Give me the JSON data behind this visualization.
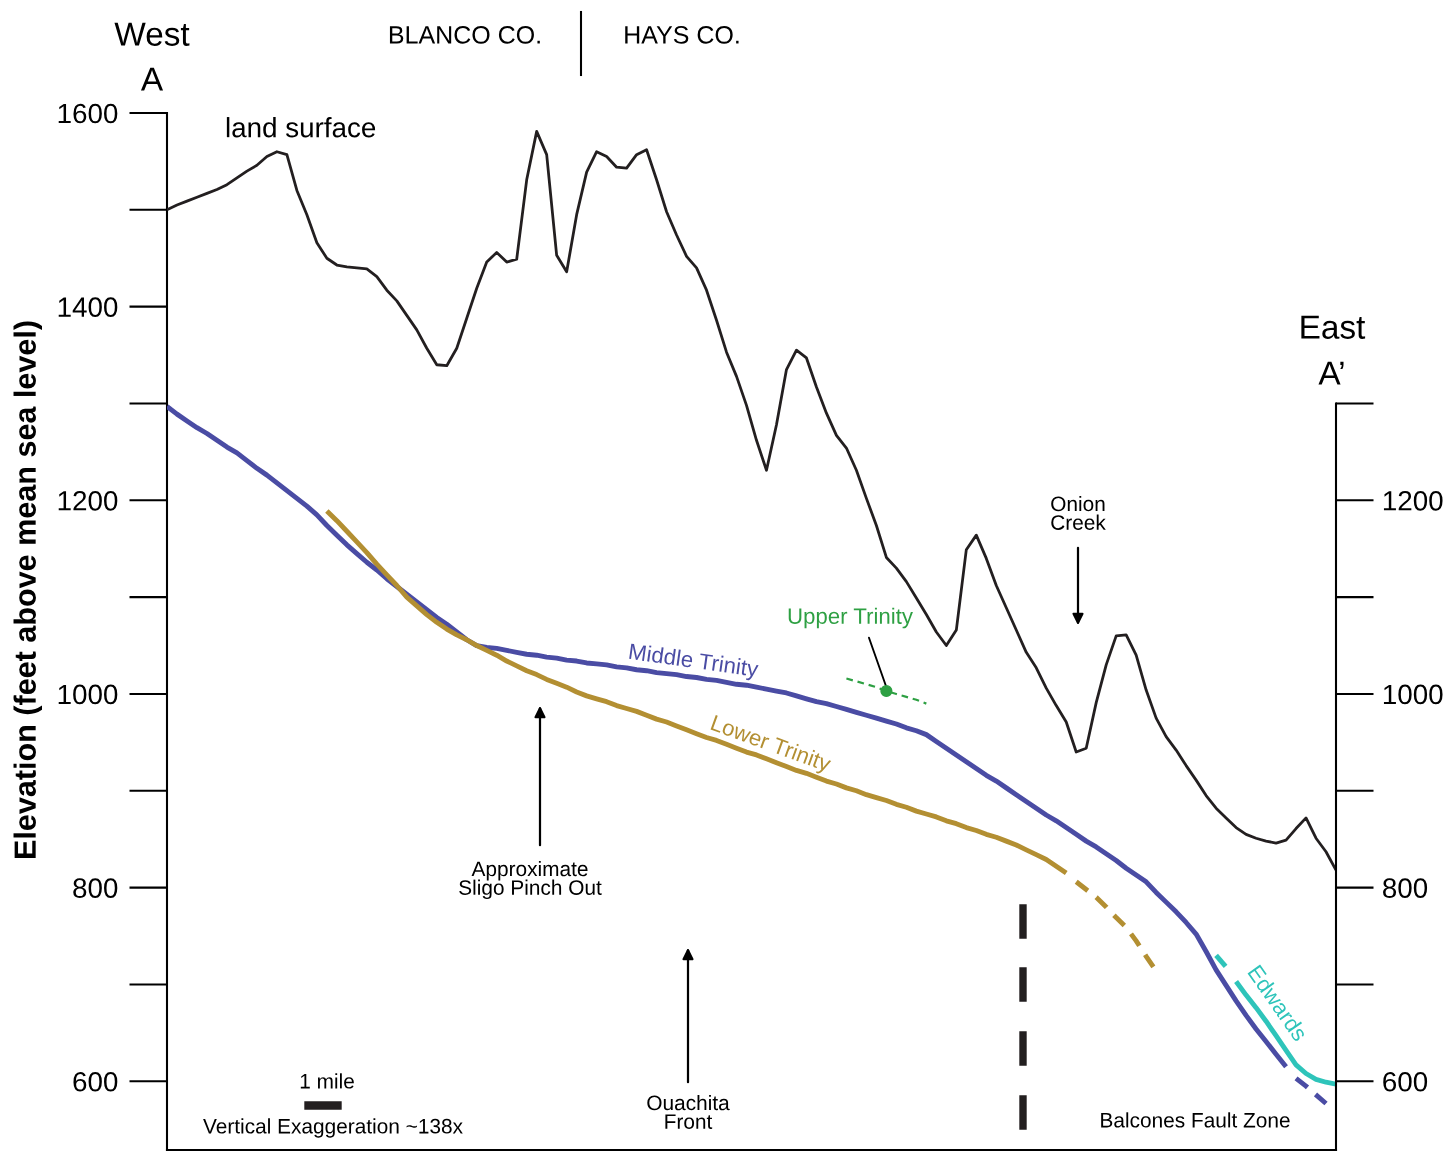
{
  "chart_data": {
    "type": "line",
    "ylabel": "Elevation (feet above mean sea level)",
    "categories": [
      null,
      null,
      null,
      null,
      null,
      null,
      null,
      null,
      null,
      null,
      null,
      null,
      null,
      null,
      null,
      null,
      null,
      null,
      null,
      null,
      null,
      null,
      null,
      null,
      null,
      null,
      null,
      null,
      null,
      null,
      null,
      null,
      null,
      null,
      null,
      null,
      null,
      null,
      null,
      null,
      null,
      null,
      null,
      null,
      null,
      null,
      null,
      null,
      null,
      null,
      null,
      null,
      null,
      null,
      null,
      null,
      null,
      null,
      null,
      null,
      null,
      null,
      null,
      null,
      null,
      null,
      null,
      null,
      null,
      null,
      null,
      null,
      null,
      null,
      null,
      null,
      null,
      null,
      null,
      null,
      null,
      null,
      null,
      null,
      null,
      null,
      null,
      null,
      null,
      null,
      null,
      null,
      null,
      null,
      null,
      null,
      null,
      null,
      null,
      null,
      null,
      null,
      null,
      null,
      null,
      null,
      null,
      null,
      null,
      null,
      null,
      null,
      null,
      null,
      null,
      null,
      null,
      null
    ],
    "series": [
      {
        "name": "land surface",
        "color": "#231f20",
        "values": [
          1500,
          1505,
          1509,
          1513,
          1517,
          1521,
          1526,
          1533,
          1540,
          1546,
          1555,
          1560,
          1557,
          1520,
          1495,
          1466,
          1450,
          1443,
          1441,
          1440,
          1439,
          1431,
          1417,
          1406,
          1391,
          1376,
          1357,
          1340,
          1339,
          1357,
          1388,
          1419,
          1446,
          1456,
          1446,
          1449,
          1531,
          1581,
          1557,
          1453,
          1436,
          1495,
          1539,
          1560,
          1555,
          1544,
          1543,
          1557,
          1562,
          1531,
          1498,
          1474,
          1452,
          1440,
          1417,
          1386,
          1353,
          1328,
          1298,
          1262,
          1231,
          1278,
          1335,
          1355,
          1347,
          1317,
          1290,
          1267,
          1254,
          1231,
          1202,
          1174,
          1141,
          1130,
          1116,
          1099,
          1082,
          1064,
          1050,
          1066,
          1149,
          1164,
          1140,
          1112,
          1089,
          1066,
          1043,
          1027,
          1006,
          988,
          971,
          940,
          944,
          991,
          1030,
          1060,
          1061,
          1040,
          1004,
          975,
          956,
          942,
          926,
          911,
          895,
          882,
          872,
          862,
          855,
          851,
          848,
          846,
          849,
          861,
          872,
          851,
          837,
          818
        ]
      },
      {
        "name": "Middle Trinity",
        "color": "#4a4ca4",
        "values": [
          1297,
          1289,
          1282,
          1275,
          1269,
          1262,
          1255,
          1249,
          1241,
          1233,
          1226,
          1218,
          1210,
          1202,
          1194,
          1185,
          1174,
          1164,
          1154,
          1145,
          1136,
          1128,
          1119,
          1111,
          1103,
          1095,
          1087,
          1079,
          1072,
          1064,
          1056,
          1050,
          1048,
          1047,
          1045,
          1043,
          1041,
          1040,
          1038,
          1037,
          1035,
          1034,
          1032,
          1031,
          1030,
          1028,
          1027,
          1025,
          1024,
          1022,
          1021,
          1020,
          1018,
          1017,
          1015,
          1014,
          1012,
          1010,
          1009,
          1007,
          1005,
          1003,
          1001,
          998,
          995,
          992,
          990,
          987,
          984,
          981,
          978,
          975,
          972,
          969,
          965,
          962,
          958,
          951,
          944,
          937,
          930,
          923,
          916,
          910,
          903,
          896,
          889,
          882,
          875,
          869,
          862,
          855,
          848,
          842,
          835,
          828,
          820,
          813,
          806,
          795,
          785,
          775,
          764,
          752,
          734,
          715,
          699,
          683,
          668,
          654,
          641,
          628,
          615,
          null,
          null,
          null,
          null,
          null
        ]
      },
      {
        "color": "#4a4ca4",
        "line_style": "dashed",
        "values": [
          null,
          null,
          null,
          null,
          null,
          null,
          null,
          null,
          null,
          null,
          null,
          null,
          null,
          null,
          null,
          null,
          null,
          null,
          null,
          null,
          null,
          null,
          null,
          null,
          null,
          null,
          null,
          null,
          null,
          null,
          null,
          null,
          null,
          null,
          null,
          null,
          null,
          null,
          null,
          null,
          null,
          null,
          null,
          null,
          null,
          null,
          null,
          null,
          null,
          null,
          null,
          null,
          null,
          null,
          null,
          null,
          null,
          null,
          null,
          null,
          null,
          null,
          null,
          null,
          null,
          null,
          null,
          null,
          null,
          null,
          null,
          null,
          null,
          null,
          null,
          null,
          null,
          null,
          null,
          null,
          null,
          null,
          null,
          null,
          null,
          null,
          null,
          null,
          null,
          null,
          null,
          null,
          null,
          null,
          null,
          null,
          null,
          null,
          null,
          null,
          null,
          null,
          null,
          null,
          null,
          null,
          null,
          null,
          null,
          null,
          null,
          null,
          null,
          603,
          595,
          586,
          577,
          null
        ]
      },
      {
        "name": "Lower Trinity",
        "color": "#b38f32",
        "values": [
          null,
          null,
          null,
          null,
          null,
          null,
          null,
          null,
          null,
          null,
          null,
          null,
          null,
          null,
          null,
          null,
          1189,
          1179,
          1168,
          1157,
          1146,
          1134,
          1123,
          1112,
          1100,
          1091,
          1082,
          1074,
          1067,
          1061,
          1056,
          1050,
          1045,
          1040,
          1034,
          1029,
          1024,
          1020,
          1015,
          1011,
          1007,
          1002,
          998,
          995,
          992,
          988,
          985,
          982,
          978,
          974,
          971,
          967,
          963,
          959,
          955,
          952,
          948,
          944,
          940,
          937,
          933,
          929,
          925,
          921,
          918,
          914,
          910,
          907,
          903,
          900,
          896,
          893,
          890,
          886,
          883,
          879,
          876,
          873,
          869,
          866,
          862,
          859,
          855,
          852,
          848,
          844,
          839,
          834,
          829,
          822,
          815,
          null,
          null,
          null,
          null,
          null,
          null,
          null,
          null,
          null,
          null,
          null,
          null,
          null,
          null,
          null,
          null,
          null,
          null,
          null,
          null,
          null,
          null,
          null,
          null,
          null,
          null,
          null
        ]
      },
      {
        "color": "#b38f32",
        "line_style": "dashed",
        "values": [
          null,
          null,
          null,
          null,
          null,
          null,
          null,
          null,
          null,
          null,
          null,
          null,
          null,
          null,
          null,
          null,
          null,
          null,
          null,
          null,
          null,
          null,
          null,
          null,
          null,
          null,
          null,
          null,
          null,
          null,
          null,
          null,
          null,
          null,
          null,
          null,
          null,
          null,
          null,
          null,
          null,
          null,
          null,
          null,
          null,
          null,
          null,
          null,
          null,
          null,
          null,
          null,
          null,
          null,
          null,
          null,
          null,
          null,
          null,
          null,
          null,
          null,
          null,
          null,
          null,
          null,
          null,
          null,
          null,
          null,
          null,
          null,
          null,
          null,
          null,
          null,
          null,
          null,
          null,
          null,
          null,
          null,
          null,
          null,
          null,
          null,
          null,
          null,
          null,
          null,
          null,
          806,
          798,
          790,
          780,
          769,
          759,
          745,
          729,
          714,
          null,
          null,
          null,
          null,
          null,
          null,
          null,
          null,
          null,
          null,
          null,
          null,
          null,
          null,
          null,
          null,
          null,
          null
        ]
      },
      {
        "name": "Upper Trinity",
        "color": "#2ea043",
        "line_style": "dashed",
        "values": [
          null,
          null,
          null,
          null,
          null,
          null,
          null,
          null,
          null,
          null,
          null,
          null,
          null,
          null,
          null,
          null,
          null,
          null,
          null,
          null,
          null,
          null,
          null,
          null,
          null,
          null,
          null,
          null,
          null,
          null,
          null,
          null,
          null,
          null,
          null,
          null,
          null,
          null,
          null,
          null,
          null,
          null,
          null,
          null,
          null,
          null,
          null,
          null,
          null,
          null,
          null,
          null,
          null,
          null,
          null,
          null,
          null,
          null,
          null,
          null,
          null,
          null,
          null,
          null,
          null,
          null,
          null,
          null,
          1016,
          1013,
          1010,
          1007,
          1003,
          1000,
          997,
          994,
          990,
          null,
          null,
          null,
          null,
          null,
          null,
          null,
          null,
          null,
          null,
          null,
          null,
          null,
          null,
          null,
          null,
          null,
          null,
          null,
          null,
          null,
          null,
          null,
          null,
          null,
          null,
          null,
          null,
          null,
          null,
          null,
          null,
          null,
          null,
          null,
          null,
          null,
          null,
          null,
          null,
          null
        ]
      },
      {
        "type": "scatter",
        "color": "#2ea043",
        "marker": "circle",
        "values": [
          null,
          null,
          null,
          null,
          null,
          null,
          null,
          null,
          null,
          null,
          null,
          null,
          null,
          null,
          null,
          null,
          null,
          null,
          null,
          null,
          null,
          null,
          null,
          null,
          null,
          null,
          null,
          null,
          null,
          null,
          null,
          null,
          null,
          null,
          null,
          null,
          null,
          null,
          null,
          null,
          null,
          null,
          null,
          null,
          null,
          null,
          null,
          null,
          null,
          null,
          null,
          null,
          null,
          null,
          null,
          null,
          null,
          null,
          null,
          null,
          null,
          null,
          null,
          null,
          null,
          null,
          null,
          null,
          null,
          null,
          null,
          null,
          1003,
          null,
          null,
          null,
          null,
          null,
          null,
          null,
          null,
          null,
          null,
          null,
          null,
          null,
          null,
          null,
          null,
          null,
          null,
          null,
          null,
          null,
          null,
          null,
          null,
          null,
          null,
          null,
          null,
          null,
          null,
          null,
          null,
          null,
          null,
          null,
          null,
          null,
          null,
          null,
          null,
          null,
          null,
          null,
          null,
          null
        ]
      },
      {
        "name": "Edwards",
        "color": "#2ec4ba",
        "values": [
          null,
          null,
          null,
          null,
          null,
          null,
          null,
          null,
          null,
          null,
          null,
          null,
          null,
          null,
          null,
          null,
          null,
          null,
          null,
          null,
          null,
          null,
          null,
          null,
          null,
          null,
          null,
          null,
          null,
          null,
          null,
          null,
          null,
          null,
          null,
          null,
          null,
          null,
          null,
          null,
          null,
          null,
          null,
          null,
          null,
          null,
          null,
          null,
          null,
          null,
          null,
          null,
          null,
          null,
          null,
          null,
          null,
          null,
          null,
          null,
          null,
          null,
          null,
          null,
          null,
          null,
          null,
          null,
          null,
          null,
          null,
          null,
          null,
          null,
          null,
          null,
          null,
          null,
          null,
          null,
          null,
          null,
          null,
          null,
          null,
          null,
          null,
          null,
          null,
          null,
          null,
          null,
          null,
          null,
          null,
          null,
          null,
          null,
          null,
          null,
          null,
          null,
          null,
          null,
          null,
          null,
          null,
          703,
          689,
          676,
          662,
          647,
          632,
          617,
          608,
          602,
          599,
          597
        ]
      },
      {
        "color": "#2ec4ba",
        "line_style": "dashed",
        "values": [
          null,
          null,
          null,
          null,
          null,
          null,
          null,
          null,
          null,
          null,
          null,
          null,
          null,
          null,
          null,
          null,
          null,
          null,
          null,
          null,
          null,
          null,
          null,
          null,
          null,
          null,
          null,
          null,
          null,
          null,
          null,
          null,
          null,
          null,
          null,
          null,
          null,
          null,
          null,
          null,
          null,
          null,
          null,
          null,
          null,
          null,
          null,
          null,
          null,
          null,
          null,
          null,
          null,
          null,
          null,
          null,
          null,
          null,
          null,
          null,
          null,
          null,
          null,
          null,
          null,
          null,
          null,
          null,
          null,
          null,
          null,
          null,
          null,
          null,
          null,
          null,
          null,
          null,
          null,
          null,
          null,
          null,
          null,
          null,
          null,
          null,
          null,
          null,
          null,
          null,
          null,
          null,
          null,
          null,
          null,
          null,
          null,
          null,
          null,
          null,
          null,
          null,
          null,
          null,
          null,
          730,
          718,
          null,
          null,
          null,
          null,
          null,
          null,
          null,
          null,
          null,
          null,
          null
        ]
      }
    ],
    "ylim": [
      529,
      1600
    ],
    "yticks": [
      1600,
      1400,
      1200,
      1000,
      800,
      600
    ],
    "y2lim": [
      529,
      1600
    ],
    "y2ticks": [
      1200,
      1000,
      800,
      600
    ],
    "tick_labels": "y",
    "grid": false,
    "legend": false,
    "marker": "none",
    "line_style": "solid",
    "annotations": [
      "West",
      "A",
      "BLANCO CO.",
      "HAYS CO.",
      "East",
      "A’",
      "Onion\nCreek",
      "Approximate\nSligo Pinch Out",
      "Ouachita\nFront",
      "1 mile",
      "Vertical Exaggeration ~138x",
      "Balcones Fault Zone"
    ]
  }
}
